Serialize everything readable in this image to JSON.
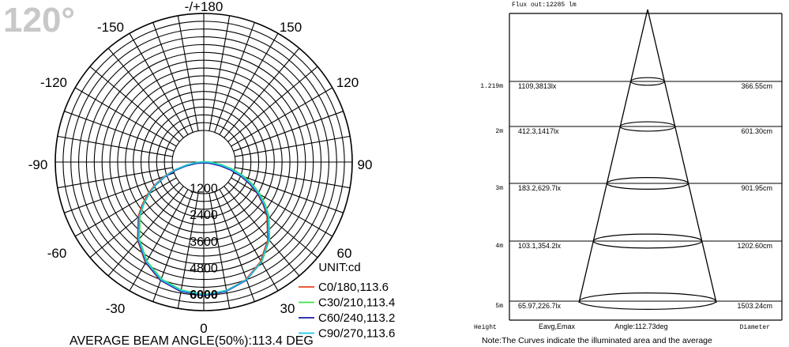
{
  "chart_data": [
    {
      "type": "polar",
      "corner_label": "120°",
      "angle_labels": [
        "-/+180",
        "-150",
        "150",
        "-120",
        "120",
        "-90",
        "90",
        "-60",
        "60",
        "-30",
        "30",
        "0"
      ],
      "radial_ticks": [
        1200,
        2400,
        3600,
        4800,
        6000
      ],
      "radial_tick_labels": [
        "1200",
        "2400",
        "3600",
        "4800",
        "6000"
      ],
      "rmax": 6000,
      "unit_label": "UNIT:cd",
      "footer": "AVERAGE BEAM ANGLE(50%):113.4 DEG",
      "series": [
        {
          "name": "C0/180,113.6",
          "color": "#e8421f"
        },
        {
          "name": "C30/210,113.4",
          "color": "#3fe04a"
        },
        {
          "name": "C60/240,113.2",
          "color": "#1a1aa8"
        },
        {
          "name": "C90/270,113.6",
          "color": "#1fc8e8"
        }
      ],
      "curve": {
        "angles_deg": [
          0,
          10,
          20,
          30,
          40,
          50,
          55,
          60,
          65,
          70,
          75,
          80,
          85,
          90
        ],
        "intensity_cd": [
          6000,
          5900,
          5650,
          5200,
          4580,
          3800,
          3350,
          2880,
          2380,
          1850,
          1300,
          780,
          300,
          0
        ]
      }
    },
    {
      "type": "table",
      "flux_label": "Flux out:12285 lm",
      "rows": [
        {
          "height": "1.219m",
          "eavg_emax": "1109,3813lx",
          "diameter": "366.55cm"
        },
        {
          "height": "2m",
          "eavg_emax": "412.3,1417lx",
          "diameter": "601.30cm"
        },
        {
          "height": "3m",
          "eavg_emax": "183.2,629.7lx",
          "diameter": "901.95cm"
        },
        {
          "height": "4m",
          "eavg_emax": "103.1,354.2lx",
          "diameter": "1202.60cm"
        },
        {
          "height": "5m",
          "eavg_emax": "65.97,226.7lx",
          "diameter": "1503.24cm"
        }
      ],
      "col_height": "Height",
      "col_eavg": "Eavg,Emax",
      "col_angle": "Angle:112.73deg",
      "col_diameter": "Diameter",
      "note": "Note:The Curves indicate the illuminated area and the average"
    }
  ]
}
